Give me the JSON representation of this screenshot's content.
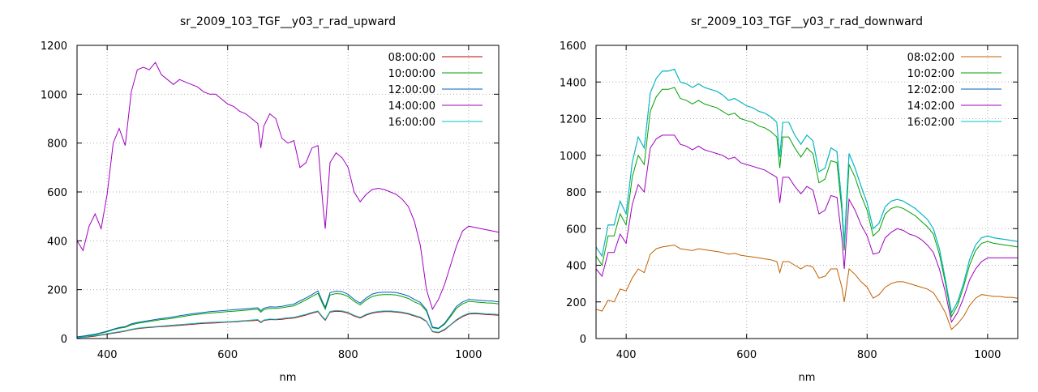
{
  "chart_data": [
    {
      "type": "line",
      "title": "sr_2009_103_TGF__y03_r_rad_upward",
      "xlabel": "nm",
      "ylabel": "",
      "xlim": [
        350,
        1050
      ],
      "ylim": [
        0,
        1200
      ],
      "xticks": [
        400,
        600,
        800,
        1000
      ],
      "yticks": [
        0,
        200,
        400,
        600,
        800,
        1000,
        1200
      ],
      "grid": true,
      "legend_position": "top-right",
      "x": [
        350,
        360,
        370,
        380,
        390,
        400,
        410,
        420,
        430,
        440,
        450,
        460,
        470,
        480,
        490,
        500,
        510,
        520,
        530,
        540,
        550,
        560,
        570,
        580,
        590,
        600,
        610,
        620,
        630,
        640,
        650,
        655,
        660,
        670,
        680,
        690,
        700,
        710,
        720,
        730,
        740,
        750,
        758,
        762,
        770,
        780,
        790,
        800,
        810,
        820,
        830,
        840,
        850,
        860,
        870,
        880,
        890,
        900,
        910,
        920,
        930,
        940,
        950,
        960,
        970,
        980,
        990,
        1000,
        1010,
        1020,
        1030,
        1040,
        1050
      ],
      "series": [
        {
          "name": "08:00:00",
          "color": "#c00000",
          "values": [
            3,
            5,
            7,
            10,
            14,
            18,
            22,
            26,
            30,
            36,
            40,
            43,
            45,
            47,
            49,
            50,
            52,
            54,
            56,
            58,
            60,
            62,
            63,
            64,
            66,
            67,
            68,
            70,
            72,
            73,
            75,
            65,
            74,
            78,
            77,
            79,
            82,
            84,
            90,
            96,
            104,
            110,
            85,
            75,
            108,
            112,
            110,
            104,
            92,
            84,
            96,
            104,
            108,
            110,
            110,
            108,
            105,
            100,
            92,
            85,
            70,
            28,
            24,
            35,
            55,
            75,
            90,
            100,
            102,
            100,
            98,
            97,
            95
          ]
        },
        {
          "name": "10:00:00",
          "color": "#00a000",
          "values": [
            6,
            9,
            12,
            16,
            22,
            28,
            36,
            42,
            46,
            56,
            62,
            66,
            70,
            74,
            78,
            80,
            84,
            88,
            92,
            96,
            99,
            102,
            104,
            106,
            108,
            110,
            112,
            114,
            116,
            118,
            120,
            108,
            118,
            124,
            123,
            126,
            130,
            134,
            146,
            158,
            172,
            185,
            140,
            120,
            178,
            184,
            182,
            172,
            152,
            138,
            158,
            172,
            178,
            180,
            180,
            178,
            172,
            164,
            150,
            140,
            112,
            44,
            40,
            58,
            90,
            124,
            142,
            152,
            150,
            148,
            146,
            145,
            142
          ]
        },
        {
          "name": "12:00:00",
          "color": "#0060c0",
          "values": [
            7,
            10,
            14,
            18,
            24,
            30,
            38,
            45,
            49,
            60,
            66,
            70,
            74,
            78,
            82,
            85,
            89,
            93,
            97,
            101,
            104,
            107,
            110,
            112,
            114,
            116,
            118,
            120,
            122,
            124,
            126,
            114,
            124,
            130,
            129,
            132,
            137,
            141,
            154,
            166,
            180,
            195,
            148,
            128,
            188,
            194,
            192,
            181,
            160,
            145,
            166,
            182,
            188,
            190,
            190,
            188,
            182,
            174,
            160,
            148,
            118,
            47,
            42,
            62,
            96,
            132,
            150,
            160,
            158,
            156,
            154,
            153,
            150
          ]
        },
        {
          "name": "14:00:00",
          "color": "#a000c0",
          "values": [
            400,
            360,
            460,
            510,
            450,
            590,
            800,
            860,
            790,
            1010,
            1100,
            1110,
            1100,
            1130,
            1080,
            1060,
            1040,
            1060,
            1050,
            1040,
            1030,
            1010,
            1000,
            1000,
            980,
            960,
            950,
            930,
            920,
            900,
            880,
            780,
            870,
            920,
            900,
            820,
            800,
            810,
            700,
            720,
            780,
            790,
            550,
            450,
            720,
            760,
            740,
            700,
            600,
            560,
            590,
            610,
            615,
            610,
            600,
            590,
            570,
            540,
            480,
            380,
            200,
            120,
            160,
            220,
            300,
            380,
            440,
            460,
            455,
            450,
            445,
            440,
            435
          ]
        },
        {
          "name": "16:00:00",
          "color": "#00c0c0",
          "values": [
            4,
            6,
            9,
            12,
            16,
            20,
            24,
            28,
            32,
            38,
            42,
            45,
            47,
            49,
            51,
            53,
            55,
            57,
            59,
            61,
            63,
            65,
            66,
            67,
            68,
            69,
            70,
            72,
            74,
            76,
            78,
            68,
            76,
            80,
            79,
            82,
            85,
            87,
            93,
            99,
            107,
            113,
            88,
            78,
            111,
            115,
            113,
            107,
            95,
            87,
            99,
            107,
            111,
            113,
            113,
            111,
            108,
            103,
            95,
            88,
            72,
            30,
            26,
            38,
            57,
            78,
            93,
            103,
            105,
            103,
            101,
            100,
            98
          ]
        }
      ]
    },
    {
      "type": "line",
      "title": "sr_2009_103_TGF__y03_r_rad_downward",
      "xlabel": "nm",
      "ylabel": "",
      "xlim": [
        350,
        1050
      ],
      "ylim": [
        0,
        1600
      ],
      "xticks": [
        400,
        600,
        800,
        1000
      ],
      "yticks": [
        0,
        200,
        400,
        600,
        800,
        1000,
        1200,
        1400,
        1600
      ],
      "grid": true,
      "legend_position": "top-right",
      "x": [
        350,
        360,
        370,
        380,
        390,
        400,
        410,
        420,
        430,
        440,
        450,
        460,
        470,
        480,
        490,
        500,
        510,
        520,
        530,
        540,
        550,
        560,
        570,
        580,
        590,
        600,
        610,
        620,
        630,
        640,
        650,
        655,
        660,
        670,
        680,
        690,
        700,
        710,
        720,
        730,
        740,
        750,
        758,
        762,
        770,
        780,
        790,
        800,
        810,
        820,
        830,
        840,
        850,
        860,
        870,
        880,
        890,
        900,
        910,
        920,
        930,
        940,
        950,
        960,
        970,
        980,
        990,
        1000,
        1010,
        1020,
        1030,
        1040,
        1050
      ],
      "series": [
        {
          "name": "08:02:00",
          "color": "#c06000",
          "values": [
            160,
            150,
            210,
            200,
            270,
            260,
            330,
            380,
            360,
            460,
            490,
            500,
            505,
            510,
            490,
            485,
            480,
            490,
            485,
            480,
            475,
            470,
            460,
            465,
            455,
            450,
            445,
            440,
            435,
            430,
            420,
            360,
            420,
            420,
            400,
            380,
            400,
            390,
            330,
            340,
            380,
            380,
            280,
            200,
            380,
            350,
            310,
            280,
            220,
            240,
            280,
            300,
            310,
            310,
            300,
            290,
            280,
            270,
            250,
            200,
            140,
            50,
            80,
            120,
            180,
            220,
            240,
            235,
            230,
            230,
            225,
            225,
            220
          ]
        },
        {
          "name": "10:02:00",
          "color": "#00a000",
          "values": [
            450,
            400,
            560,
            560,
            680,
            620,
            880,
            1000,
            950,
            1240,
            1320,
            1360,
            1360,
            1370,
            1310,
            1300,
            1280,
            1300,
            1280,
            1270,
            1260,
            1240,
            1220,
            1230,
            1200,
            1190,
            1180,
            1160,
            1150,
            1130,
            1100,
            930,
            1100,
            1100,
            1040,
            990,
            1040,
            1010,
            850,
            870,
            970,
            960,
            700,
            480,
            950,
            880,
            780,
            700,
            560,
            590,
            680,
            710,
            720,
            710,
            690,
            670,
            640,
            610,
            570,
            460,
            300,
            120,
            180,
            280,
            400,
            480,
            520,
            530,
            520,
            515,
            510,
            505,
            500
          ]
        },
        {
          "name": "12:02:00",
          "color": "#0060c0",
          "values": [
            500,
            450,
            620,
            620,
            750,
            680,
            960,
            1100,
            1040,
            1340,
            1420,
            1460,
            1460,
            1470,
            1400,
            1390,
            1370,
            1390,
            1370,
            1360,
            1350,
            1330,
            1300,
            1310,
            1290,
            1270,
            1260,
            1240,
            1230,
            1210,
            1180,
            990,
            1180,
            1180,
            1110,
            1060,
            1110,
            1080,
            910,
            930,
            1040,
            1020,
            740,
            510,
            1010,
            930,
            830,
            740,
            600,
            630,
            720,
            750,
            760,
            750,
            730,
            710,
            680,
            650,
            600,
            490,
            320,
            140,
            200,
            300,
            430,
            510,
            550,
            560,
            550,
            545,
            540,
            535,
            530
          ]
        },
        {
          "name": "14:02:00",
          "color": "#a000c0",
          "values": [
            380,
            340,
            470,
            470,
            570,
            520,
            730,
            840,
            800,
            1040,
            1090,
            1110,
            1110,
            1110,
            1060,
            1050,
            1030,
            1050,
            1030,
            1020,
            1010,
            1000,
            980,
            990,
            960,
            950,
            940,
            930,
            920,
            900,
            880,
            740,
            880,
            880,
            830,
            790,
            830,
            810,
            680,
            700,
            780,
            770,
            550,
            380,
            760,
            700,
            620,
            560,
            460,
            470,
            550,
            580,
            600,
            590,
            570,
            560,
            540,
            510,
            470,
            380,
            250,
            90,
            140,
            220,
            320,
            380,
            420,
            440,
            440,
            440,
            440,
            440,
            440
          ]
        },
        {
          "name": "16:02:00",
          "color": "#00c0c0",
          "values": [
            500,
            450,
            620,
            620,
            750,
            680,
            960,
            1100,
            1040,
            1340,
            1420,
            1460,
            1460,
            1470,
            1400,
            1390,
            1370,
            1390,
            1370,
            1360,
            1350,
            1330,
            1300,
            1310,
            1290,
            1270,
            1260,
            1240,
            1230,
            1210,
            1180,
            990,
            1180,
            1180,
            1110,
            1060,
            1110,
            1080,
            910,
            930,
            1040,
            1020,
            740,
            510,
            1010,
            930,
            830,
            740,
            600,
            630,
            720,
            750,
            760,
            750,
            730,
            710,
            680,
            650,
            600,
            490,
            320,
            140,
            200,
            300,
            430,
            510,
            550,
            560,
            550,
            545,
            540,
            535,
            530
          ]
        }
      ]
    }
  ]
}
